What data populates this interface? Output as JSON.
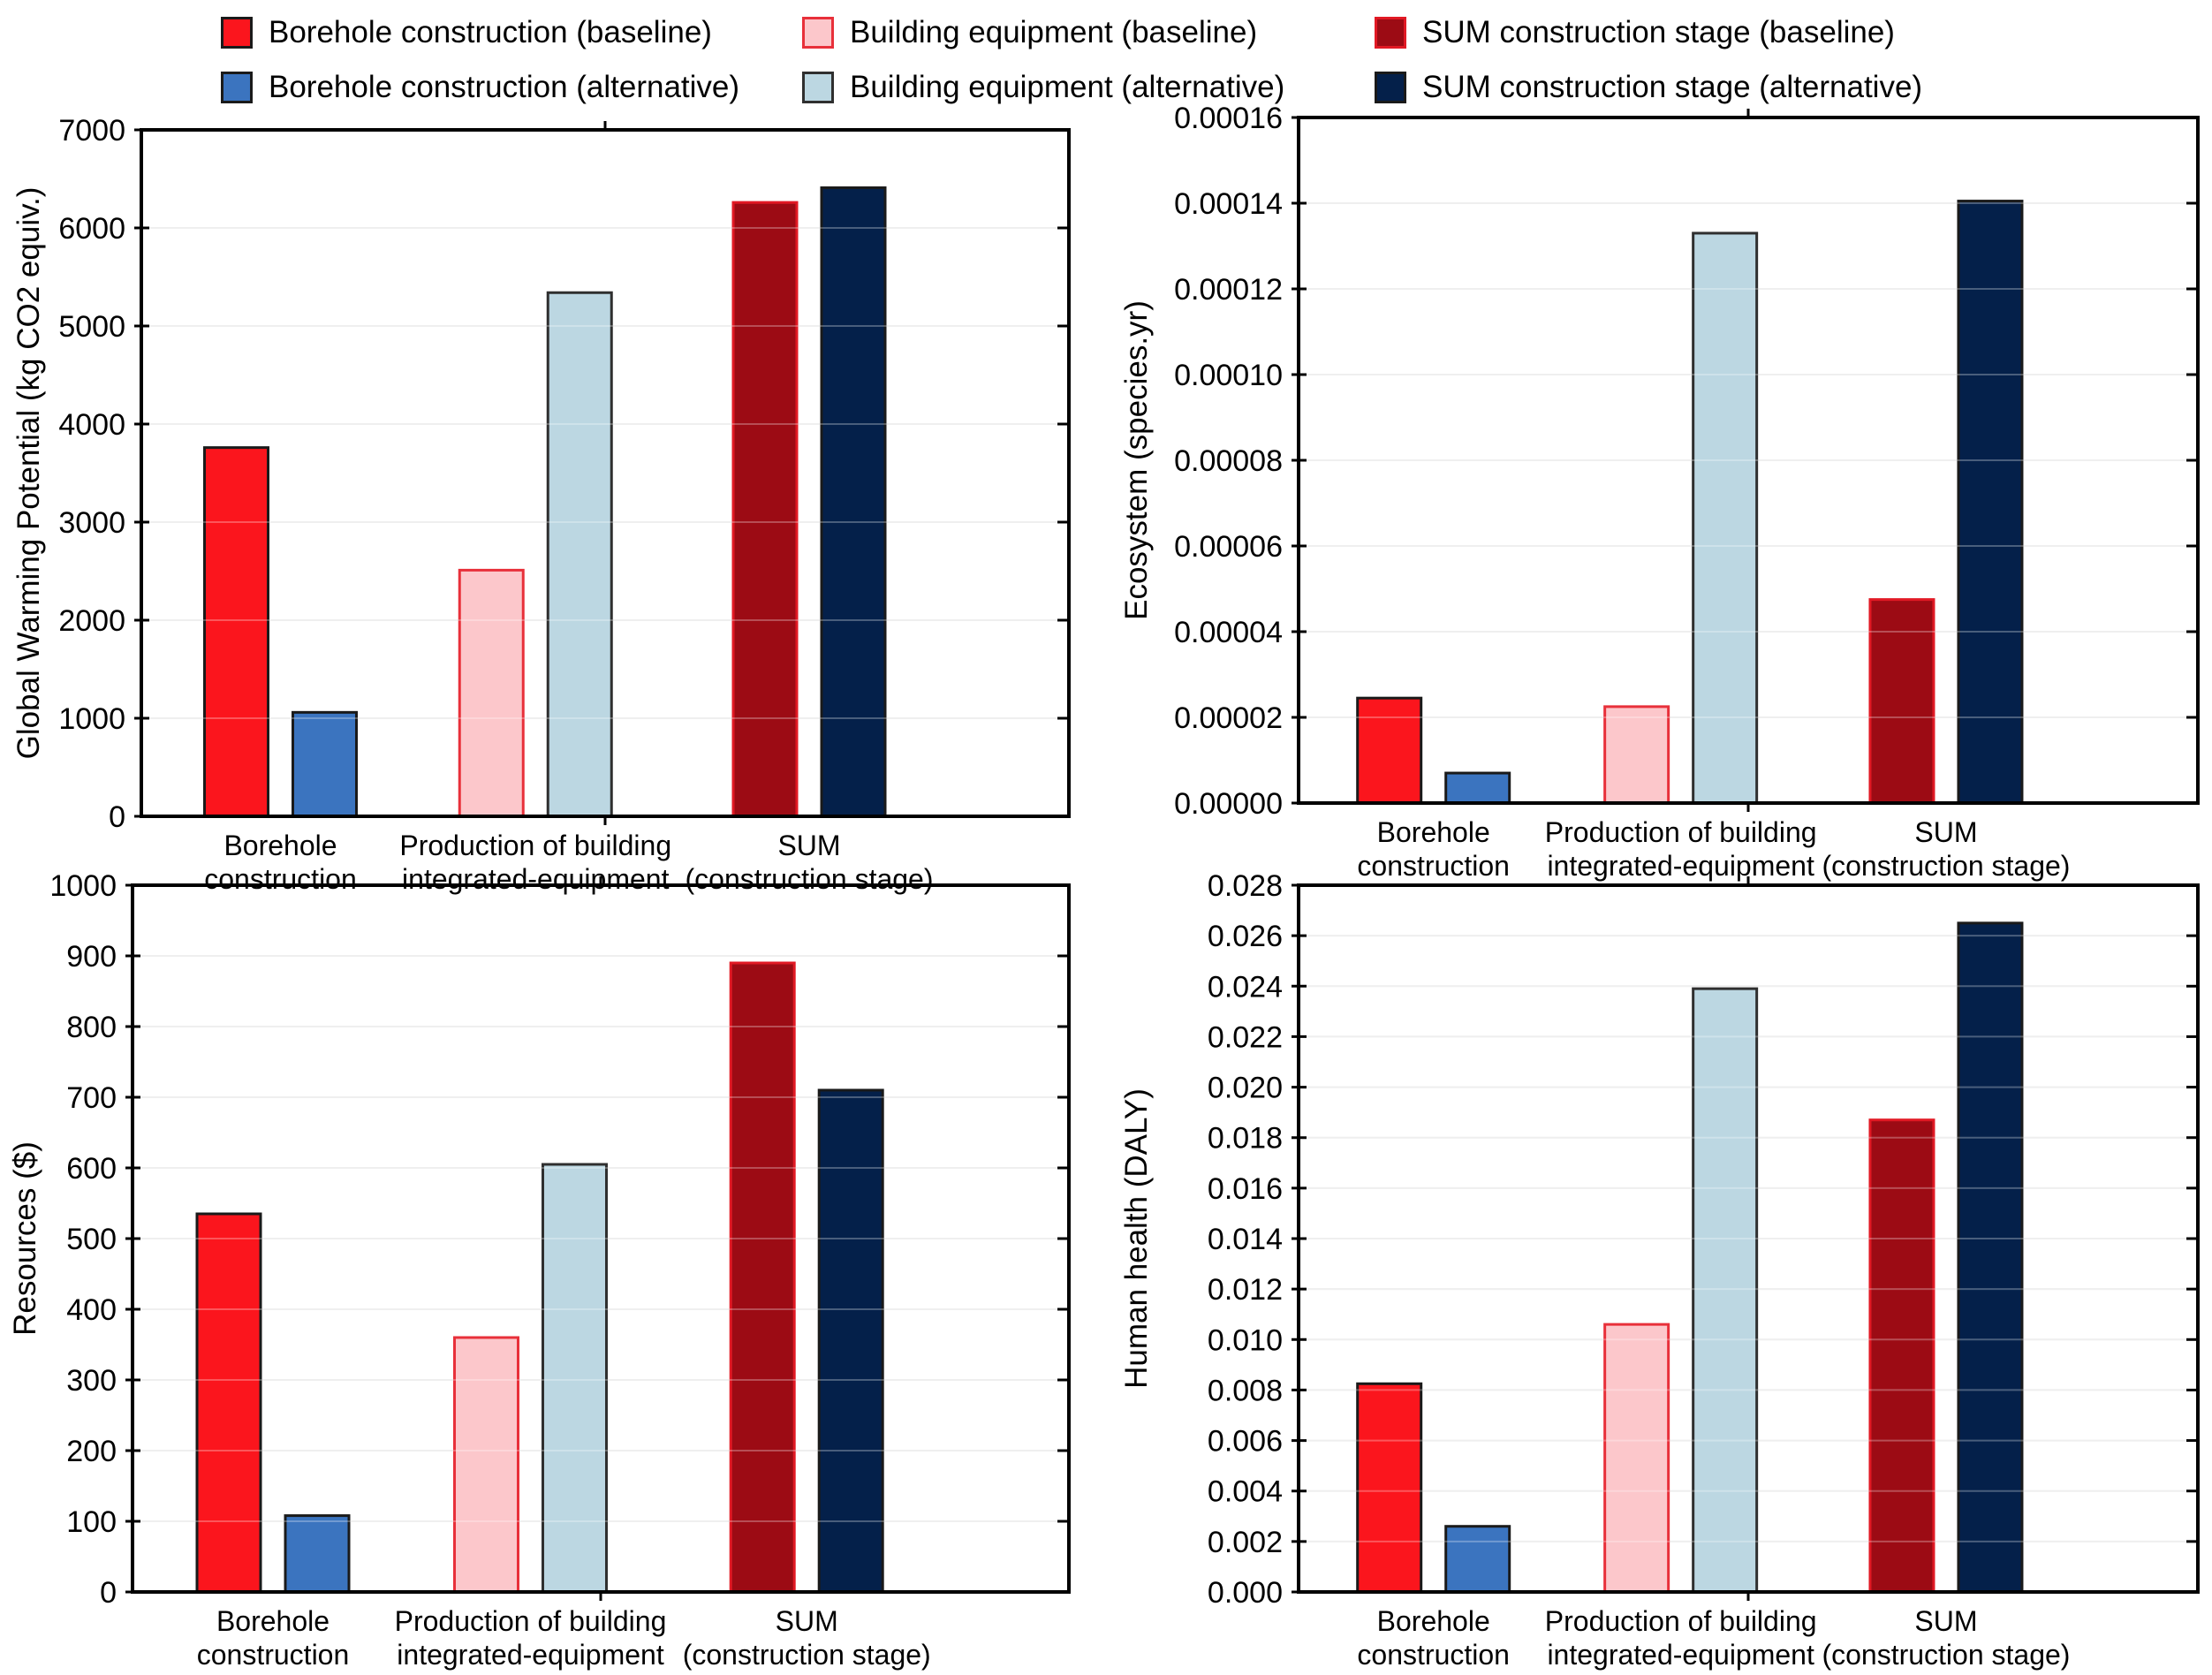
{
  "legend": {
    "items": [
      {
        "label": "Borehole construction (baseline)",
        "fill": "#fb151d",
        "stroke": "#1a1a1a"
      },
      {
        "label": "Borehole construction (alternative)",
        "fill": "#3b74bf",
        "stroke": "#1a1a1a"
      },
      {
        "label": "Building equipment (baseline)",
        "fill": "#fcc7cb",
        "stroke": "#e8303a"
      },
      {
        "label": "Building equipment (alternative)",
        "fill": "#bcd7e2",
        "stroke": "#2f2f2f"
      },
      {
        "label": "SUM construction stage (baseline)",
        "fill": "#9c0b14",
        "stroke": "#e11924"
      },
      {
        "label": "SUM construction stage (alternative)",
        "fill": "#04204a",
        "stroke": "#1a1a1a"
      }
    ]
  },
  "categories": [
    [
      "Borehole",
      "construction"
    ],
    [
      "Production of building",
      "integrated-equipment"
    ],
    [
      "SUM",
      "(construction stage)"
    ]
  ],
  "chart_data": [
    {
      "type": "bar",
      "ylabel": "Global Warming Potential (kg CO2 equiv.)",
      "ylim": [
        0,
        7000
      ],
      "ytick_step": 1000,
      "ytick_decimals": 0,
      "grid": true,
      "legend_position": "top",
      "categories": [
        "Borehole construction",
        "Production of building integrated-equipment",
        "SUM (construction stage)"
      ],
      "series": [
        {
          "name": "Borehole construction (baseline)",
          "value": 3760
        },
        {
          "name": "Borehole construction (alternative)",
          "value": 1060
        },
        {
          "name": "Building equipment (baseline)",
          "value": 2510
        },
        {
          "name": "Building equipment (alternative)",
          "value": 5340
        },
        {
          "name": "SUM construction stage (baseline)",
          "value": 6260
        },
        {
          "name": "SUM construction stage (alternative)",
          "value": 6410
        }
      ]
    },
    {
      "type": "bar",
      "ylabel": "Ecosystem (species.yr)",
      "ylim": [
        0,
        0.00016
      ],
      "ytick_step": 2e-05,
      "ytick_decimals": 5,
      "grid": true,
      "legend_position": "top",
      "categories": [
        "Borehole construction",
        "Production of building integrated-equipment",
        "SUM (construction stage)"
      ],
      "series": [
        {
          "name": "Borehole construction (baseline)",
          "value": 2.45e-05
        },
        {
          "name": "Borehole construction (alternative)",
          "value": 7e-06
        },
        {
          "name": "Building equipment (baseline)",
          "value": 2.25e-05
        },
        {
          "name": "Building equipment (alternative)",
          "value": 0.000133
        },
        {
          "name": "SUM construction stage (baseline)",
          "value": 4.75e-05
        },
        {
          "name": "SUM construction stage (alternative)",
          "value": 0.0001405
        }
      ]
    },
    {
      "type": "bar",
      "ylabel": "Resources ($)",
      "ylim": [
        0,
        1000
      ],
      "ytick_step": 100,
      "ytick_decimals": 0,
      "grid": true,
      "legend_position": "top",
      "categories": [
        "Borehole construction",
        "Production of building integrated-equipment",
        "SUM (construction stage)"
      ],
      "series": [
        {
          "name": "Borehole construction (baseline)",
          "value": 535
        },
        {
          "name": "Borehole construction (alternative)",
          "value": 108
        },
        {
          "name": "Building equipment (baseline)",
          "value": 360
        },
        {
          "name": "Building equipment (alternative)",
          "value": 605
        },
        {
          "name": "SUM construction stage (baseline)",
          "value": 890
        },
        {
          "name": "SUM construction stage (alternative)",
          "value": 710
        }
      ]
    },
    {
      "type": "bar",
      "ylabel": "Human health (DALY)",
      "ylim": [
        0,
        0.028
      ],
      "ytick_step": 0.002,
      "ytick_decimals": 3,
      "grid": true,
      "legend_position": "top",
      "categories": [
        "Borehole construction",
        "Production of building integrated-equipment",
        "SUM (construction stage)"
      ],
      "series": [
        {
          "name": "Borehole construction (baseline)",
          "value": 0.00825
        },
        {
          "name": "Borehole construction (alternative)",
          "value": 0.0026
        },
        {
          "name": "Building equipment (baseline)",
          "value": 0.0106
        },
        {
          "name": "Building equipment (alternative)",
          "value": 0.0239
        },
        {
          "name": "SUM construction stage (baseline)",
          "value": 0.0187
        },
        {
          "name": "SUM construction stage (alternative)",
          "value": 0.0265
        }
      ]
    }
  ]
}
